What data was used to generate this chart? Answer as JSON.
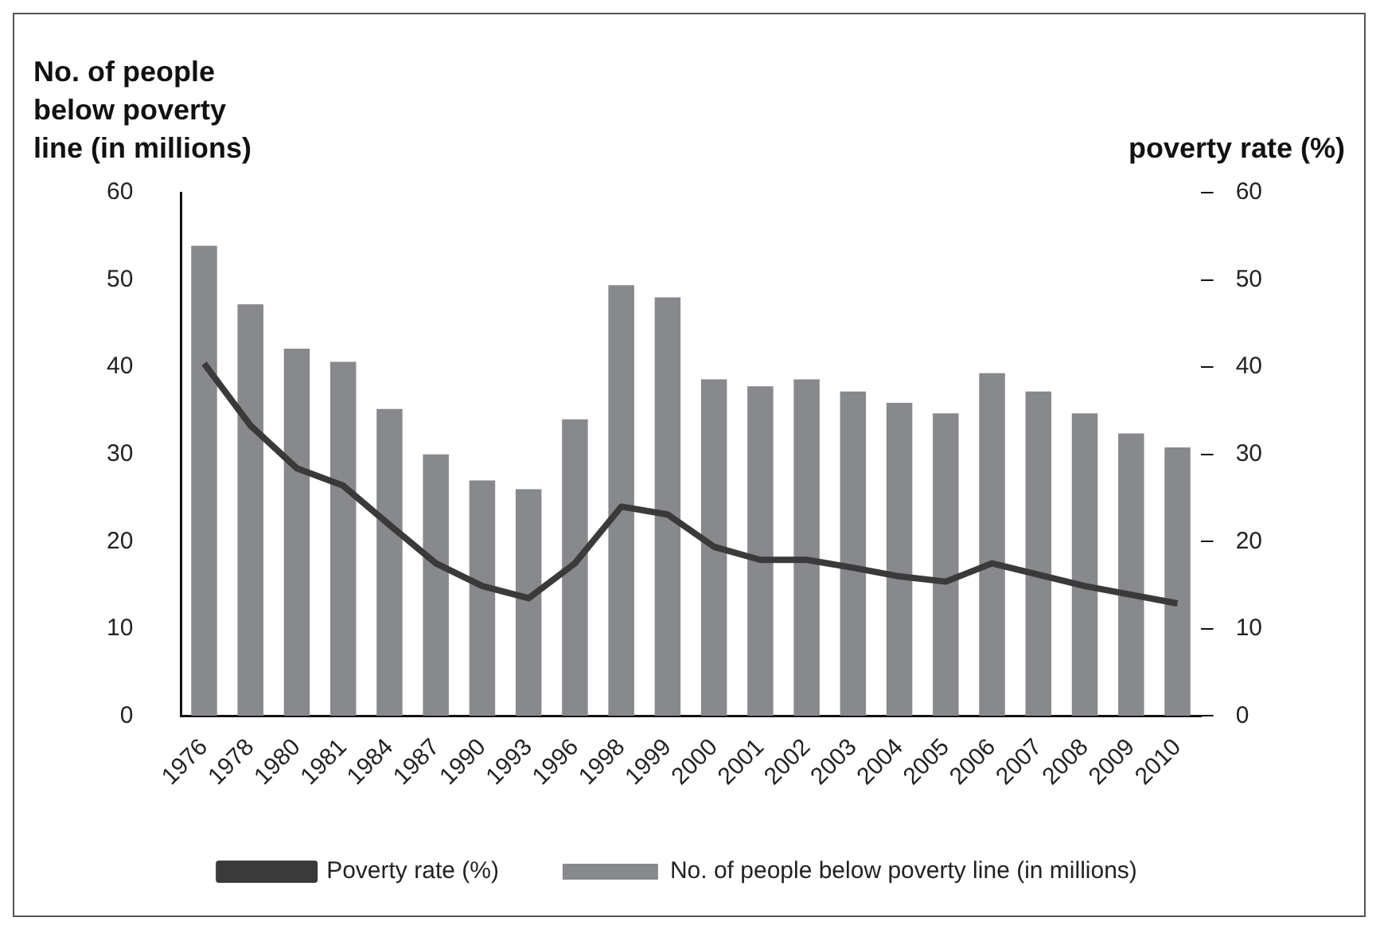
{
  "chart_data": {
    "type": "bar",
    "ylabel": "No. of people below poverty line (in millions)",
    "y2label": "poverty rate (%)",
    "categories": [
      "1976",
      "1978",
      "1980",
      "1981",
      "1984",
      "1987",
      "1990",
      "1993",
      "1996",
      "1998",
      "1999",
      "2000",
      "2001",
      "2002",
      "2003",
      "2004",
      "2005",
      "2006",
      "2007",
      "2008",
      "2009",
      "2010"
    ],
    "series": [
      {
        "name": "No. of people below poverty line (in millions)",
        "color": "#88898d",
        "values": [
          53.9,
          47.2,
          42.1,
          40.6,
          35.2,
          30.0,
          27.0,
          26.0,
          34.0,
          49.4,
          48.0,
          38.6,
          37.8,
          38.6,
          37.2,
          35.9,
          34.7,
          39.3,
          37.2,
          34.7,
          32.4,
          30.8
        ]
      },
      {
        "name": "Poverty rate (%)",
        "type": "line",
        "axis": "y2",
        "color": "#3a3a3a",
        "values": [
          40.4,
          33.3,
          28.4,
          26.4,
          21.9,
          17.5,
          14.9,
          13.5,
          17.5,
          24.0,
          23.1,
          19.4,
          17.9,
          17.9,
          17.0,
          16.0,
          15.4,
          17.5,
          16.2,
          14.9,
          13.9,
          12.9
        ]
      }
    ],
    "ylim": [
      0,
      60
    ],
    "yticks": [
      0,
      10,
      20,
      30,
      40,
      50,
      60
    ],
    "y2lim": [
      0,
      60
    ],
    "y2ticks": [
      0,
      10,
      20,
      30,
      40,
      50,
      60
    ],
    "legend": "bottom",
    "marker": "none",
    "line_style": "solid"
  }
}
